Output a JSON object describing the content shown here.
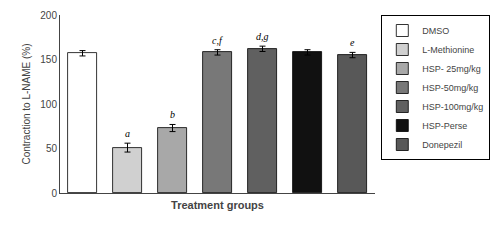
{
  "chart_data": {
    "type": "bar",
    "xlabel": "Treatment groups",
    "ylabel": "Contraction to L-NAME (%)",
    "categories": [
      "DMSO",
      "L-Methionine",
      "HSP-25mg/kg",
      "HSP-50mg/kg",
      "HSP-100mg/kg",
      "HSP-Perse",
      "Donepezil"
    ],
    "series": [
      {
        "name": "DMSO",
        "color": "#ffffff",
        "values": [
          157,
          null,
          null,
          null,
          null,
          null,
          null
        ],
        "errors": [
          3,
          null,
          null,
          null,
          null,
          null,
          null
        ]
      },
      {
        "name": "L-Methionine",
        "color": "#d0d0d0",
        "values": [
          null,
          51,
          null,
          null,
          null,
          null,
          null
        ],
        "errors": [
          null,
          5,
          null,
          null,
          null,
          null,
          null
        ]
      },
      {
        "name": "HSP- 25mg/kg",
        "color": "#a8a8a8",
        "values": [
          null,
          null,
          73,
          null,
          null,
          null,
          null
        ],
        "errors": [
          null,
          null,
          4,
          null,
          null,
          null,
          null
        ]
      },
      {
        "name": "HSP-50mg/kg",
        "color": "#787878",
        "values": [
          null,
          null,
          null,
          158,
          null,
          null,
          null
        ],
        "errors": [
          null,
          null,
          null,
          3,
          null,
          null,
          null
        ]
      },
      {
        "name": "HSP-100mg/kg",
        "color": "#606060",
        "values": [
          null,
          null,
          null,
          null,
          162,
          null,
          null
        ],
        "errors": [
          null,
          null,
          null,
          null,
          3,
          null,
          null
        ]
      },
      {
        "name": "HSP-Perse",
        "color": "#111111",
        "values": [
          null,
          null,
          null,
          null,
          null,
          158,
          null
        ],
        "errors": [
          null,
          null,
          null,
          null,
          null,
          3,
          null
        ]
      },
      {
        "name": "Donepezil",
        "color": "#585858",
        "values": [
          null,
          null,
          null,
          null,
          null,
          null,
          155
        ],
        "errors": [
          null,
          null,
          null,
          null,
          null,
          null,
          3
        ]
      }
    ],
    "annotations": [
      null,
      "a",
      "b",
      "c,f",
      "d,g",
      null,
      "e"
    ],
    "ylim": [
      0,
      200
    ],
    "yticks": [
      0,
      50,
      100,
      150,
      200
    ],
    "tick_labels": "y",
    "grid": false,
    "legend": "right"
  }
}
